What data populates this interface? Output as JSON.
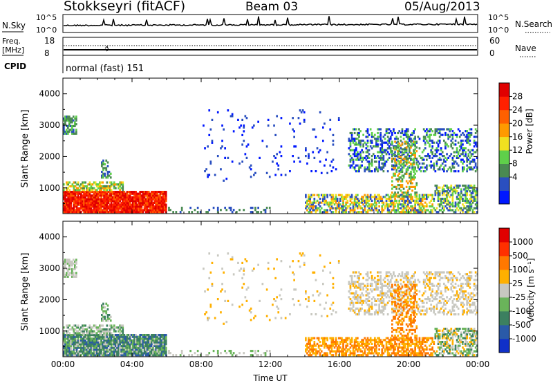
{
  "header": {
    "station": "Stokkseyri (fitACF)",
    "beam": "Beam 03",
    "date": "05/Aug/2013"
  },
  "noise_panel": {
    "left_label": "N.Sky",
    "right_label": "N.Search",
    "left_ticks": [
      "10^5",
      "10^0"
    ],
    "right_ticks": [
      "10^5",
      "10^0"
    ]
  },
  "freq_panel": {
    "left_label_line1": "Freq.",
    "left_label_line2": "[MHz]",
    "right_label": "Nave",
    "left_ticks": [
      "18",
      "8"
    ],
    "right_ticks": [
      "60",
      "0"
    ],
    "cpid_label": "CPID",
    "cpid_text": "normal (fast) 151"
  },
  "chart_data": [
    {
      "type": "heatmap",
      "name": "power",
      "title": "",
      "xlabel": "",
      "ylabel": "Slant Range [km]",
      "xlim": [
        "00:00",
        "24:00"
      ],
      "ylim": [
        180,
        4500
      ],
      "y_ticks": [
        "4000",
        "3000",
        "2000",
        "1000"
      ],
      "colorbar": {
        "label": "Power [dB]",
        "ticks": [
          "28",
          "24",
          "20",
          "16",
          "12",
          "8",
          "4"
        ],
        "colors": [
          "#0018ff",
          "#2a4fc0",
          "#4a8a52",
          "#5fd04a",
          "#f0e020",
          "#ff9a00",
          "#ff6000",
          "#ff2000",
          "#e00000"
        ]
      }
    },
    {
      "type": "heatmap",
      "name": "velocity",
      "title": "",
      "xlabel": "Time UT",
      "ylabel": "Slant Range [km]",
      "xlim": [
        "00:00",
        "24:00"
      ],
      "ylim": [
        180,
        4500
      ],
      "y_ticks": [
        "4000",
        "3000",
        "2000",
        "1000"
      ],
      "x_ticks": [
        "00:00",
        "04:00",
        "08:00",
        "12:00",
        "16:00",
        "20:00",
        "00:00"
      ],
      "colorbar": {
        "label": "Velocity [m s⁻¹]",
        "ticks": [
          "1000",
          "500",
          "100",
          "25",
          "-25",
          "-100",
          "-500",
          "-1000"
        ],
        "colors": [
          "#1030c8",
          "#2a5aa8",
          "#3c8060",
          "#6ab45a",
          "#c8c8c0",
          "#ffb000",
          "#ff7800",
          "#ff3000",
          "#e00000"
        ]
      }
    }
  ]
}
